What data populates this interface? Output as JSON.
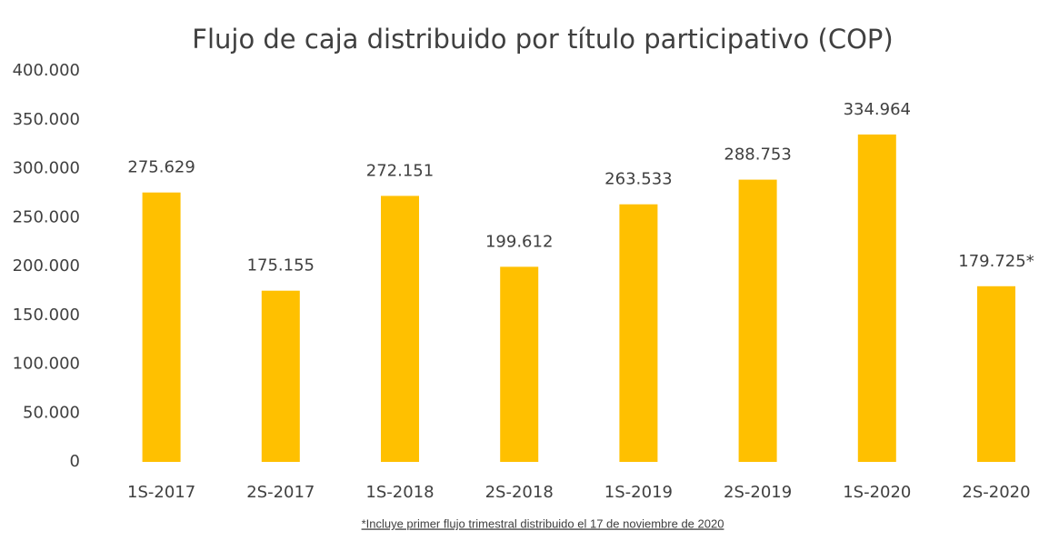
{
  "chart_data": {
    "type": "bar",
    "title": "Flujo de caja distribuido por título participativo (COP)",
    "categories": [
      "1S-2017",
      "2S-2017",
      "1S-2018",
      "2S-2018",
      "1S-2019",
      "2S-2019",
      "1S-2020",
      "2S-2020"
    ],
    "values": [
      275629,
      175155,
      272151,
      199612,
      263533,
      288753,
      334964,
      179725
    ],
    "value_labels": [
      "275.629",
      "175.155",
      "272.151",
      "199.612",
      "263.533",
      "288.753",
      "334.964",
      "179.725*"
    ],
    "color": "#ffc000",
    "ylim": [
      0,
      400000
    ],
    "yticks": [
      0,
      {
        "value": 50000,
        "label": "50.000"
      },
      {
        "value": 100000,
        "label": "100.000"
      },
      {
        "value": 150000,
        "label": "150.000"
      },
      {
        "value": 200000,
        "label": "200.000"
      },
      {
        "value": 250000,
        "label": "250.000"
      },
      {
        "value": 300000,
        "label": "300.000"
      },
      {
        "value": 350000,
        "label": "350.000"
      },
      {
        "value": 400000,
        "label": "400.000"
      }
    ],
    "grid": false,
    "annotations": [
      "*Incluye primer flujo trimestral distribuido el 17 de noviembre de 2020"
    ]
  }
}
